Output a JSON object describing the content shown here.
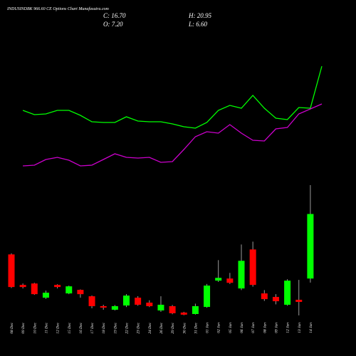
{
  "chart_data": {
    "type": "candlestick",
    "title": "INDUSINDBK 966.60 CE Options Chart Munafasutra.com",
    "readouts": [
      "C: 16.70",
      "H: 20.95",
      "O: 7.20",
      "L: 6.60"
    ],
    "categories": [
      "08 Dec",
      "09 Dec",
      "10 Dec",
      "11 Dec",
      "12 Dec",
      "15 Dec",
      "16 Dec",
      "17 Dec",
      "18 Dec",
      "19 Dec",
      "22 Dec",
      "23 Dec",
      "24 Dec",
      "26 Dec",
      "29 Dec",
      "30 Dec",
      "31 Dec",
      "01 Jan",
      "02 Jan",
      "05 Jan",
      "06 Jan",
      "07 Jan",
      "08 Jan",
      "09 Jan",
      "12 Jan",
      "13 Jan",
      "14 Jan"
    ],
    "open": [
      10.75,
      6.26,
      6.47,
      4.38,
      6.26,
      5.01,
      5.53,
      4.59,
      3.13,
      2.61,
      3.23,
      4.38,
      3.65,
      2.5,
      3.13,
      2.19,
      1.98,
      3.02,
      6.89,
      7.2,
      5.74,
      11.48,
      5.01,
      4.49,
      3.34,
      4.07,
      7.2
    ],
    "high": [
      10.9,
      6.47,
      6.57,
      5.43,
      6.36,
      6.15,
      5.6,
      4.7,
      3.34,
      3.3,
      4.9,
      4.6,
      4.0,
      4.59,
      3.3,
      2.3,
      3.5,
      6.4,
      9.91,
      8.03,
      12.21,
      12.63,
      5.5,
      4.9,
      7.1,
      7.0,
      20.95
    ],
    "low": [
      5.8,
      5.74,
      4.8,
      4.2,
      5.74,
      4.9,
      4.38,
      2.82,
      2.6,
      2.5,
      3.0,
      3.2,
      3.0,
      2.3,
      1.95,
      1.8,
      1.9,
      2.9,
      6.7,
      6.4,
      5.5,
      6.0,
      3.9,
      3.4,
      3.2,
      1.77,
      6.6
    ],
    "close": [
      5.95,
      5.95,
      4.9,
      5.11,
      5.95,
      6.05,
      4.9,
      3.13,
      2.92,
      3.13,
      4.69,
      3.34,
      3.13,
      3.34,
      2.09,
      1.88,
      3.13,
      6.16,
      7.3,
      6.57,
      9.81,
      6.26,
      4.17,
      3.86,
      6.89,
      3.76,
      16.7
    ],
    "up_color": "#00ff00",
    "down_color": "#ff0000",
    "wick_color": "#9a9a9a",
    "lines": [
      {
        "color": "#00ff00",
        "values": [
          9.5,
          8.9,
          9.0,
          9.5,
          9.5,
          8.8,
          7.9,
          7.8,
          7.8,
          8.6,
          8.0,
          7.9,
          7.9,
          7.6,
          7.2,
          7.0,
          7.8,
          9.5,
          10.2,
          9.8,
          11.6,
          9.8,
          8.4,
          8.2,
          9.9,
          9.8,
          15.7
        ]
      },
      {
        "color": "#cc00cc",
        "values": [
          1.7,
          1.8,
          2.6,
          2.9,
          2.5,
          1.7,
          1.8,
          2.6,
          3.4,
          2.9,
          2.8,
          2.9,
          2.2,
          2.3,
          4.0,
          5.8,
          6.5,
          6.3,
          7.5,
          6.3,
          5.3,
          5.2,
          6.9,
          7.1,
          9.0,
          9.7,
          10.4
        ]
      }
    ]
  }
}
